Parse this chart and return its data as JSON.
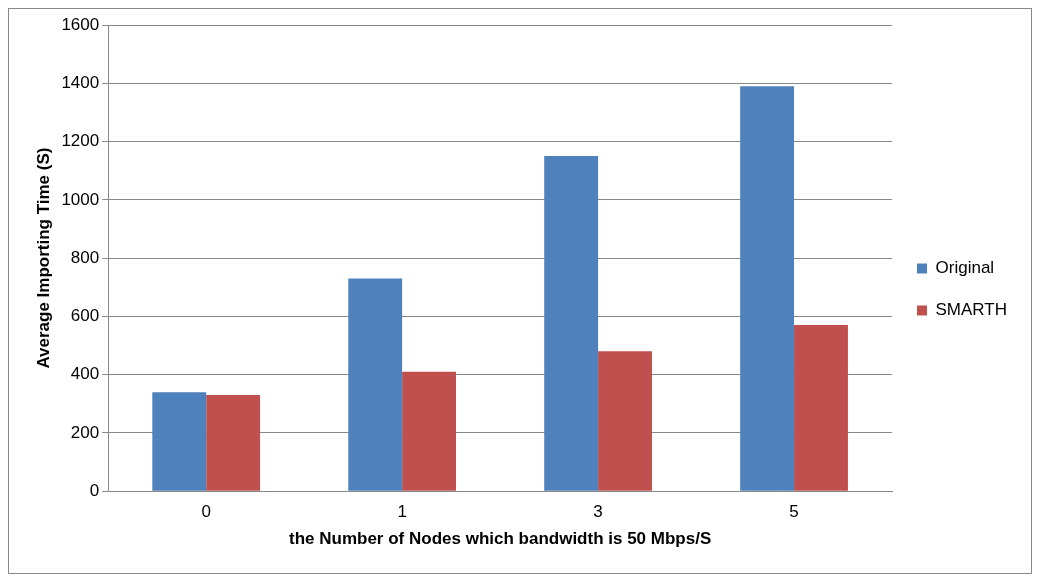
{
  "chart_data": {
    "type": "bar",
    "xlabel": "the Number of Nodes which bandwidth is 50 Mbps/S",
    "ylabel": "Average Importing Time (S)",
    "categories": [
      "0",
      "1",
      "3",
      "5"
    ],
    "series": [
      {
        "name": "Original",
        "color": "#4f81bd",
        "values": [
          340,
          730,
          1150,
          1390
        ]
      },
      {
        "name": "SMARTH",
        "color": "#c0504d",
        "values": [
          330,
          410,
          480,
          570
        ]
      }
    ],
    "ylim": [
      0,
      1600
    ],
    "yticks": [
      0,
      200,
      400,
      600,
      800,
      1000,
      1200,
      1400,
      1600
    ],
    "grid": "y",
    "legend": "right"
  }
}
